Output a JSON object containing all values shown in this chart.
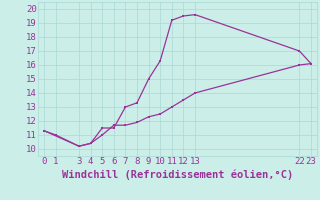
{
  "xlabel": "Windchill (Refroidissement éolien,°C)",
  "bg_color": "#cceee8",
  "line_color": "#993399",
  "marker_color": "#993399",
  "xlim": [
    -0.5,
    23.5
  ],
  "ylim": [
    9.5,
    20.5
  ],
  "xticks": [
    0,
    1,
    3,
    4,
    5,
    6,
    7,
    8,
    9,
    10,
    11,
    12,
    13,
    22,
    23
  ],
  "yticks": [
    10,
    11,
    12,
    13,
    14,
    15,
    16,
    17,
    18,
    19,
    20
  ],
  "upper_x": [
    0,
    1,
    3,
    4,
    5,
    6,
    7,
    8,
    9,
    10,
    11,
    12,
    13,
    22,
    23
  ],
  "upper_y": [
    11.3,
    11.0,
    10.2,
    10.4,
    11.5,
    11.5,
    13.0,
    13.3,
    15.0,
    16.3,
    19.2,
    19.5,
    19.6,
    17.0,
    16.1
  ],
  "lower_x": [
    0,
    3,
    4,
    5,
    6,
    7,
    8,
    9,
    10,
    11,
    12,
    13,
    22,
    23
  ],
  "lower_y": [
    11.3,
    10.2,
    10.4,
    11.0,
    11.7,
    11.7,
    11.9,
    12.3,
    12.5,
    13.0,
    13.5,
    14.0,
    16.0,
    16.1
  ],
  "grid_color": "#aad8d4",
  "font_color": "#993399",
  "tick_fontsize": 6.5,
  "xlabel_fontsize": 7.5
}
